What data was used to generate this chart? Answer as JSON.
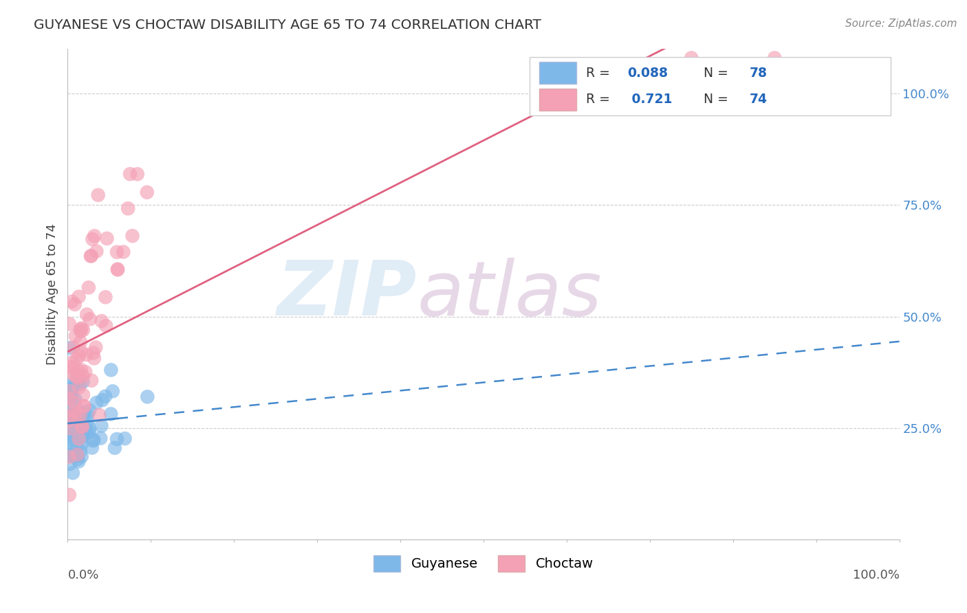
{
  "title": "GUYANESE VS CHOCTAW DISABILITY AGE 65 TO 74 CORRELATION CHART",
  "source_text": "Source: ZipAtlas.com",
  "ylabel": "Disability Age 65 to 74",
  "legend_label1": "Guyanese",
  "legend_label2": "Choctaw",
  "R1": 0.088,
  "N1": 78,
  "R2": 0.721,
  "N2": 74,
  "color_guyanese": "#7EB8E8",
  "color_choctaw": "#F4A0B5",
  "color_guyanese_line": "#4488CC",
  "color_choctaw_line": "#E06080",
  "background_color": "#FFFFFF",
  "ytick_labels": [
    "25.0%",
    "50.0%",
    "75.0%",
    "100.0%"
  ],
  "ytick_values": [
    0.25,
    0.5,
    0.75,
    1.0
  ],
  "xlim": [
    0.0,
    1.0
  ],
  "ylim": [
    0.0,
    1.1
  ],
  "guyanese_seed": 12,
  "choctaw_seed": 7
}
